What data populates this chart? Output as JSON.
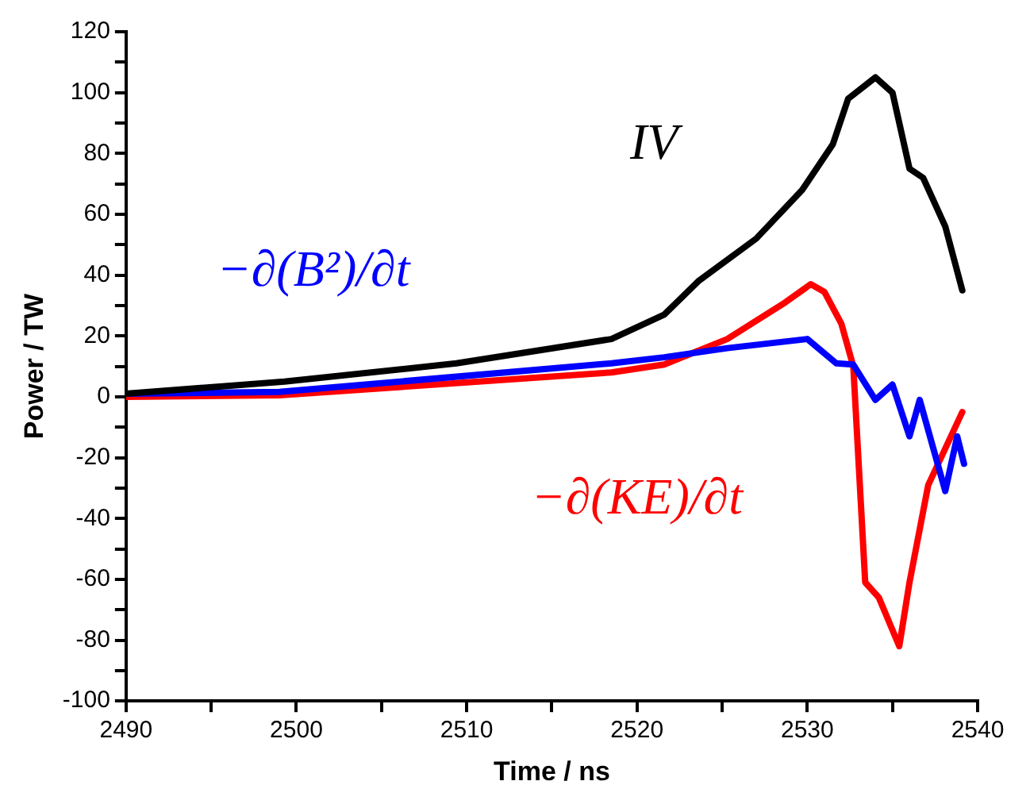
{
  "chart_data": {
    "type": "line",
    "xlabel": "Time / ns",
    "ylabel": "Power / TW",
    "xlim": [
      2490,
      2540
    ],
    "ylim": [
      -100,
      120
    ],
    "xticks": [
      2490,
      {
        "value": 2495,
        "label": null
      },
      2500,
      {
        "value": 2505,
        "label": null
      },
      2510,
      {
        "value": 2515,
        "label": null
      },
      2520,
      {
        "value": 2525,
        "label": null
      },
      2530,
      {
        "value": 2535,
        "label": null
      },
      2540
    ],
    "yticks": [
      -100,
      {
        "value": -90,
        "label": null
      },
      -80,
      {
        "value": -70,
        "label": null
      },
      -60,
      {
        "value": -50,
        "label": null
      },
      -40,
      {
        "value": -30,
        "label": null
      },
      -20,
      {
        "value": -10,
        "label": null
      },
      0,
      {
        "value": 10,
        "label": null
      },
      20,
      {
        "value": 30,
        "label": null
      },
      40,
      {
        "value": 50,
        "label": null
      },
      60,
      {
        "value": 70,
        "label": null
      },
      80,
      {
        "value": 90,
        "label": null
      },
      100,
      {
        "value": 110,
        "label": null
      },
      120
    ],
    "grid": false,
    "legend": false,
    "marker": "none",
    "line_style": "solid",
    "series": [
      {
        "name": "IV",
        "color": "#000000",
        "x": [
          2490,
          2499.3,
          2509.4,
          2518.5,
          2521.6,
          2523.6,
          2527,
          2529.7,
          2531.5,
          2532.4,
          2534,
          2535,
          2536,
          2536.8,
          2538.1,
          2539.1
        ],
        "values": [
          1,
          5,
          11,
          19,
          27,
          38,
          52,
          68,
          83,
          98,
          105,
          100,
          75,
          72,
          56,
          35
        ]
      },
      {
        "name": "−∂(B²)/∂t",
        "color": "#0000ff",
        "x": [
          2490,
          2499,
          2518.5,
          2521.6,
          2525.3,
          2530,
          2531.7,
          2532.7,
          2534,
          2535,
          2536,
          2536.6,
          2537.4,
          2538.1,
          2538.8,
          2539.2
        ],
        "values": [
          1,
          1.6,
          11,
          13,
          16,
          19,
          11,
          10.6,
          -1,
          4,
          -13,
          -1,
          -17,
          -31,
          -13,
          -22
        ]
      },
      {
        "name": "−∂(KE)/∂t",
        "color": "#ff0000",
        "x": [
          2490,
          2499,
          2518.5,
          2521.6,
          2525.3,
          2528.7,
          2530.2,
          2531,
          2532,
          2532.7,
          2533.4,
          2534.2,
          2535.4,
          2536,
          2537.1,
          2538.1,
          2539.1
        ],
        "values": [
          0,
          0.5,
          8,
          10.6,
          19,
          31,
          37,
          34.5,
          24,
          10,
          -61,
          -66,
          -82,
          -61,
          -29,
          -17,
          -5
        ]
      }
    ]
  }
}
